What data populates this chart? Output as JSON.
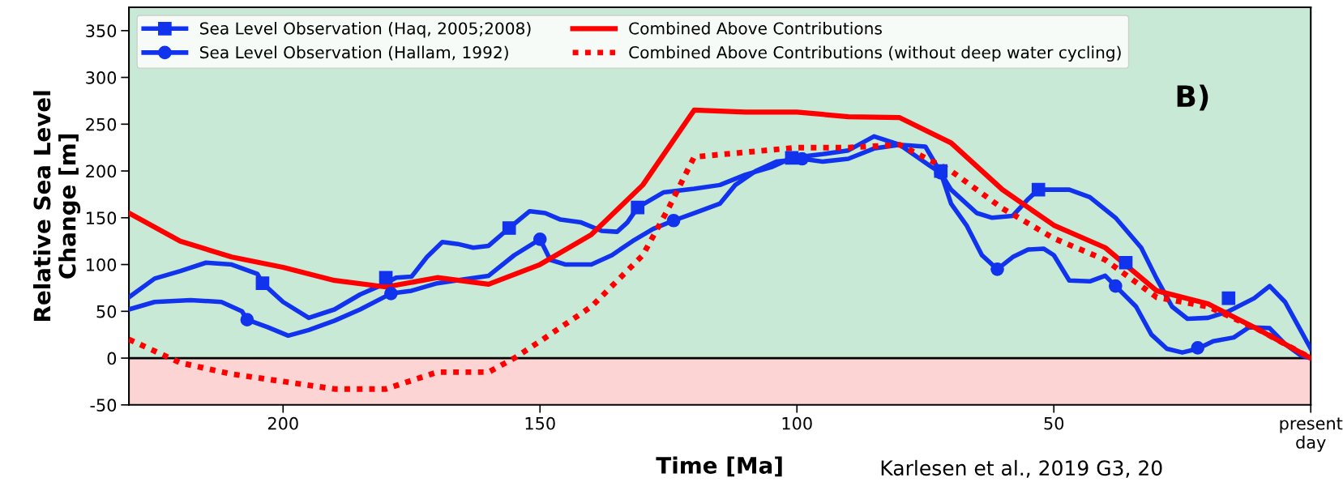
{
  "chart_data": {
    "type": "line",
    "xlabel": "Time [Ma]",
    "ylabel": "Relative Sea Level\nChange [m]",
    "xlim": [
      230,
      0
    ],
    "xticks": [
      200,
      150,
      100,
      50,
      {
        "value": 0,
        "label": "present\nday"
      }
    ],
    "ylim": [
      -50,
      375
    ],
    "yticks": [
      -50,
      0,
      50,
      100,
      150,
      200,
      250,
      300,
      350
    ],
    "grid": false,
    "legend": "top left",
    "line_style": "solid",
    "series": [
      {
        "name": "Sea Level Observation (Haq, 2005;2008)",
        "color": "#1133ee",
        "marker": "none",
        "x": [
          230,
          225,
          220,
          215,
          210,
          205,
          204,
          200,
          195,
          190,
          185,
          180,
          178,
          175,
          172,
          169,
          166,
          163,
          160,
          156,
          152,
          149,
          146,
          142,
          138,
          135,
          133,
          131,
          126,
          120,
          115,
          110,
          105,
          101,
          95,
          90,
          85,
          80,
          74,
          72,
          70,
          65,
          62,
          58,
          55,
          53,
          47,
          43,
          38,
          33,
          30,
          27,
          24,
          20,
          16,
          11,
          8,
          5,
          2,
          0
        ],
        "values": [
          65,
          85,
          93,
          102,
          100,
          90,
          80,
          60,
          43,
          52,
          68,
          80,
          86,
          87,
          108,
          124,
          122,
          118,
          120,
          139,
          157,
          155,
          148,
          145,
          136,
          135,
          145,
          161,
          177,
          181,
          185,
          196,
          204,
          214,
          218,
          222,
          237,
          228,
          205,
          198,
          180,
          155,
          150,
          152,
          170,
          180,
          180,
          172,
          150,
          118,
          85,
          55,
          42,
          43,
          50,
          64,
          77,
          60,
          30,
          10
        ]
      },
      {
        "name": "Sea Level Observation (Hallam, 1992)",
        "color": "#1133ee",
        "marker": "none",
        "x": [
          230,
          225,
          218,
          212,
          208,
          207,
          203,
          199,
          195,
          190,
          185,
          179,
          175,
          170,
          165,
          160,
          155,
          150,
          148,
          145,
          140,
          136,
          132,
          128,
          124,
          120,
          115,
          112,
          108,
          104,
          99,
          95,
          90,
          85,
          80,
          75,
          72,
          70,
          67,
          64,
          61,
          58,
          55,
          52,
          50,
          47,
          43,
          40,
          38,
          34,
          31,
          28,
          25,
          22,
          19,
          15,
          12,
          8,
          5,
          2,
          0
        ],
        "values": [
          52,
          60,
          62,
          60,
          50,
          41,
          33,
          24,
          30,
          40,
          52,
          69,
          72,
          80,
          84,
          88,
          110,
          127,
          105,
          100,
          100,
          110,
          125,
          138,
          147,
          155,
          165,
          185,
          200,
          210,
          213,
          210,
          213,
          224,
          228,
          226,
          198,
          165,
          142,
          110,
          95,
          108,
          116,
          117,
          110,
          83,
          82,
          88,
          77,
          55,
          25,
          10,
          6,
          10,
          18,
          22,
          33,
          32,
          15,
          3,
          0
        ]
      },
      {
        "type": "scatter",
        "color": "#1133ee",
        "marker": "square",
        "x": [
          204,
          180,
          156,
          131,
          101,
          72,
          53,
          36,
          16
        ],
        "values": [
          80,
          86,
          139,
          161,
          214,
          200,
          180,
          102,
          64
        ]
      },
      {
        "type": "scatter",
        "color": "#1133ee",
        "marker": "circle",
        "x": [
          207,
          179,
          150,
          124,
          99,
          72,
          61,
          38,
          22
        ],
        "values": [
          41,
          69,
          127,
          147,
          213,
          198,
          95,
          77,
          11
        ]
      },
      {
        "name": "Combined Above Contributions",
        "color": "#ff0000",
        "line_style": "solid",
        "marker": "none",
        "x": [
          230,
          220,
          210,
          200,
          190,
          180,
          170,
          160,
          150,
          140,
          130,
          120,
          110,
          100,
          90,
          80,
          70,
          60,
          50,
          40,
          30,
          20,
          10,
          0
        ],
        "values": [
          155,
          125,
          108,
          97,
          83,
          76,
          86,
          79,
          100,
          132,
          185,
          265,
          263,
          263,
          258,
          257,
          230,
          180,
          142,
          118,
          72,
          58,
          30,
          0
        ]
      },
      {
        "name": "Combined Above Contributions (without deep water cycling)",
        "color": "#ff0000",
        "line_style": "dotted",
        "marker": "none",
        "x": [
          230,
          220,
          210,
          200,
          190,
          180,
          170,
          160,
          155,
          150,
          140,
          130,
          125,
          120,
          110,
          100,
          90,
          80,
          70,
          60,
          50,
          40,
          30,
          20,
          10,
          0
        ],
        "values": [
          20,
          -5,
          -17,
          -25,
          -33,
          -33,
          -15,
          -15,
          0,
          18,
          55,
          110,
          160,
          215,
          220,
          225,
          225,
          228,
          200,
          160,
          128,
          105,
          65,
          55,
          30,
          0
        ]
      }
    ],
    "bands": [
      {
        "axis": "y",
        "from": 0,
        "to": 375,
        "color": "#c8e9d6"
      },
      {
        "axis": "y",
        "from": -50,
        "to": 0,
        "color": "#fcd4d4"
      }
    ],
    "ref_lines": [
      {
        "axis": "y",
        "value": 0,
        "color": "#000000",
        "line_style": "solid"
      }
    ],
    "annotations": [
      "B)",
      "Karlesen et al., 2019 G3, 20"
    ]
  }
}
